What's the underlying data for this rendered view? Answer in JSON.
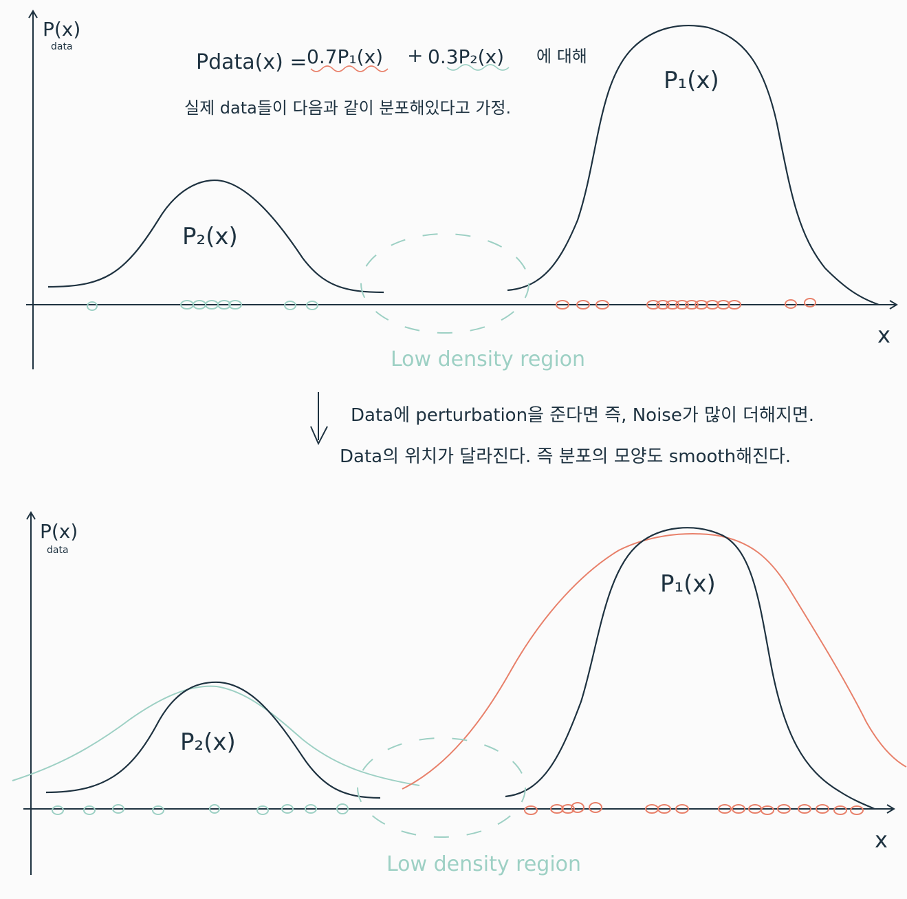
{
  "colors": {
    "ink": "#1e3240",
    "teal": "#9dd0c4",
    "orange": "#e8806a"
  },
  "top": {
    "y_axis_label": "P(x)",
    "y_axis_sub": "data",
    "x_axis_label": "x",
    "eq_lhs": "Pdata(x) =",
    "eq_term1": "0.7P₁(x)",
    "eq_plus": "+",
    "eq_term2": "0.3P₂(x)",
    "eq_suffix": "에 대해",
    "assumption": "실제 data들이 다음과 같이 분포해있다고 가정.",
    "p1_label": "P₁(x)",
    "p2_label": "P₂(x)",
    "low_density": "Low density region"
  },
  "middle": {
    "line1": "Data에 perturbation을 준다면 즉, Noise가 많이 더해지면.",
    "line2": "Data의 위치가 달라진다. 즉 분포의 모양도 smooth해진다."
  },
  "bottom": {
    "y_axis_label": "P(x)",
    "y_axis_sub": "data",
    "x_axis_label": "x",
    "p1_label": "P₁(x)",
    "p2_label": "P₂(x)",
    "low_density": "Low density region"
  }
}
